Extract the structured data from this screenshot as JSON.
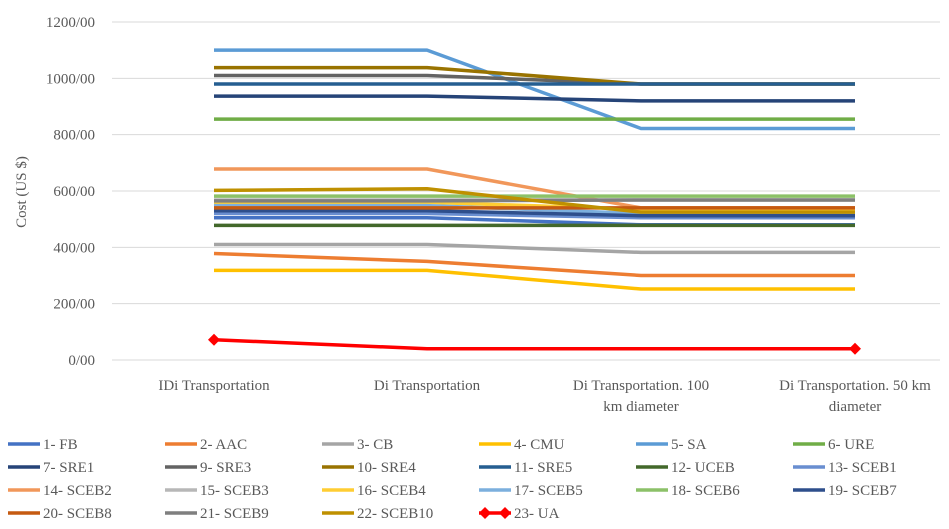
{
  "chart_data": {
    "type": "line",
    "ylabel": "Cost (US $)",
    "ylim": [
      0,
      1200
    ],
    "yticks": [
      {
        "value": 0,
        "label": "0/00"
      },
      {
        "value": 200,
        "label": "200/00"
      },
      {
        "value": 400,
        "label": "400/00"
      },
      {
        "value": 600,
        "label": "600/00"
      },
      {
        "value": 800,
        "label": "800/00"
      },
      {
        "value": 1000,
        "label": "1000/00"
      },
      {
        "value": 1200,
        "label": "1200/00"
      }
    ],
    "grid": true,
    "legend_position": "bottom",
    "categories": [
      [
        "IDi Transportation"
      ],
      [
        "Di Transportation"
      ],
      [
        "Di Transportation. 100",
        "km diameter"
      ],
      [
        "Di Transportation. 50 km",
        "diameter"
      ]
    ],
    "series": [
      {
        "name": "1- FB",
        "color": "#4472C4",
        "values": [
          505,
          505,
          480,
          480
        ]
      },
      {
        "name": "2- AAC",
        "color": "#ED7D31",
        "values": [
          378,
          350,
          300,
          300
        ]
      },
      {
        "name": "3- CB",
        "color": "#A5A5A5",
        "values": [
          410,
          410,
          382,
          382
        ]
      },
      {
        "name": "4- CMU",
        "color": "#FFC000",
        "values": [
          318,
          318,
          252,
          252
        ]
      },
      {
        "name": "5- SA",
        "color": "#5B9BD5",
        "values": [
          1100,
          1100,
          822,
          822
        ]
      },
      {
        "name": "6- URE",
        "color": "#70AD47",
        "values": [
          855,
          855,
          855,
          855
        ]
      },
      {
        "name": "7- SRE1",
        "color": "#264478",
        "values": [
          937,
          937,
          920,
          920
        ]
      },
      {
        "name": "9- SRE3",
        "color": "#636363",
        "values": [
          1010,
          1010,
          980,
          980
        ]
      },
      {
        "name": "10- SRE4",
        "color": "#997300",
        "values": [
          1038,
          1038,
          980,
          980
        ]
      },
      {
        "name": "11- SRE5",
        "color": "#255E91",
        "values": [
          980,
          980,
          980,
          980
        ]
      },
      {
        "name": "12- UCEB",
        "color": "#43682B",
        "values": [
          478,
          478,
          478,
          478
        ]
      },
      {
        "name": "13- SCEB1",
        "color": "#698ED0",
        "values": [
          520,
          520,
          505,
          505
        ]
      },
      {
        "name": "14- SCEB2",
        "color": "#F1975A",
        "values": [
          678,
          678,
          540,
          540
        ]
      },
      {
        "name": "15- SCEB3",
        "color": "#B7B7B7",
        "values": [
          568,
          568,
          568,
          568
        ]
      },
      {
        "name": "16- SCEB4",
        "color": "#FFCD33",
        "values": [
          560,
          560,
          535,
          535
        ]
      },
      {
        "name": "17- SCEB5",
        "color": "#7CAFDD",
        "values": [
          548,
          548,
          520,
          520
        ]
      },
      {
        "name": "18- SCEB6",
        "color": "#8CC168",
        "values": [
          582,
          582,
          582,
          582
        ]
      },
      {
        "name": "19- SCEB7",
        "color": "#2E4F8C",
        "values": [
          530,
          530,
          512,
          512
        ]
      },
      {
        "name": "20- SCEB8",
        "color": "#C55A11",
        "values": [
          540,
          540,
          540,
          540
        ]
      },
      {
        "name": "21- SCEB9",
        "color": "#7F7F7F",
        "values": [
          565,
          565,
          568,
          568
        ]
      },
      {
        "name": "22- SCEB10",
        "color": "#BF9000",
        "values": [
          602,
          608,
          525,
          525
        ]
      },
      {
        "name": "23- UA",
        "color": "#FF0000",
        "marker": "diamond",
        "values": [
          72,
          40,
          40,
          40
        ]
      }
    ]
  }
}
